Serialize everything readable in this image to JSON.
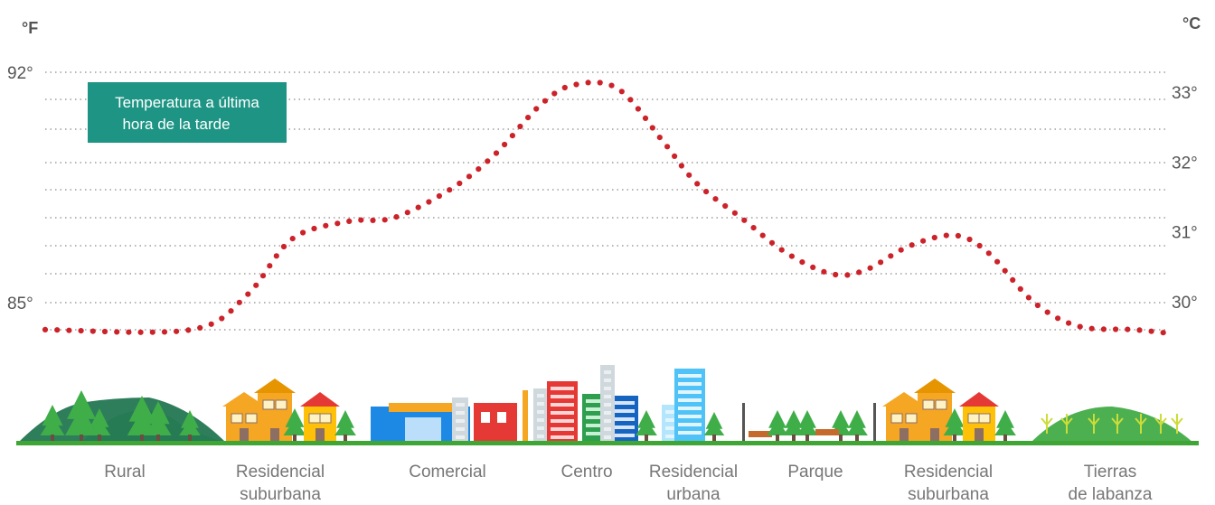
{
  "chart_data": {
    "type": "line",
    "title": "",
    "annotation": {
      "lines": [
        "Temperatura a última",
        "hora de la tarde"
      ],
      "fill": "#1e9584"
    },
    "left_axis": {
      "unit": "°F",
      "ticks": [
        {
          "value": 92,
          "label": "92°"
        },
        {
          "value": 85,
          "label": "85°"
        }
      ]
    },
    "right_axis": {
      "unit": "°C",
      "ticks": [
        {
          "value": 33,
          "label": "33°"
        },
        {
          "value": 32,
          "label": "32°"
        },
        {
          "value": 31,
          "label": "31°"
        },
        {
          "value": 30,
          "label": "30°"
        }
      ]
    },
    "grid": true,
    "regions": [
      {
        "lines": [
          "Rural"
        ]
      },
      {
        "lines": [
          "Residencial",
          "suburbana"
        ]
      },
      {
        "lines": [
          "Comercial"
        ]
      },
      {
        "lines": [
          "Centro"
        ]
      },
      {
        "lines": [
          "Residencial",
          "urbana"
        ]
      },
      {
        "lines": [
          "Parque"
        ]
      },
      {
        "lines": [
          "Residencial",
          "suburbana"
        ]
      },
      {
        "lines": [
          "Tierras",
          "de labanza"
        ]
      }
    ],
    "series": [
      {
        "color": "#cc2229",
        "style": "dotted",
        "points": [
          {
            "x": 0.0,
            "temp_c": 29.6
          },
          {
            "x": 0.13,
            "temp_c": 29.6
          },
          {
            "x": 0.18,
            "temp_c": 30.1
          },
          {
            "x": 0.22,
            "temp_c": 30.9
          },
          {
            "x": 0.27,
            "temp_c": 31.15
          },
          {
            "x": 0.31,
            "temp_c": 31.2
          },
          {
            "x": 0.36,
            "temp_c": 31.6
          },
          {
            "x": 0.4,
            "temp_c": 32.1
          },
          {
            "x": 0.44,
            "temp_c": 32.8
          },
          {
            "x": 0.47,
            "temp_c": 33.1
          },
          {
            "x": 0.51,
            "temp_c": 33.05
          },
          {
            "x": 0.55,
            "temp_c": 32.3
          },
          {
            "x": 0.58,
            "temp_c": 31.7
          },
          {
            "x": 0.62,
            "temp_c": 31.2
          },
          {
            "x": 0.66,
            "temp_c": 30.7
          },
          {
            "x": 0.7,
            "temp_c": 30.4
          },
          {
            "x": 0.73,
            "temp_c": 30.45
          },
          {
            "x": 0.77,
            "temp_c": 30.8
          },
          {
            "x": 0.81,
            "temp_c": 30.95
          },
          {
            "x": 0.84,
            "temp_c": 30.7
          },
          {
            "x": 0.88,
            "temp_c": 30.0
          },
          {
            "x": 0.92,
            "temp_c": 29.65
          },
          {
            "x": 0.97,
            "temp_c": 29.6
          },
          {
            "x": 1.0,
            "temp_c": 29.55
          }
        ]
      }
    ]
  },
  "colors": {
    "grid": "#8a8a8a",
    "ground": "#3fa535",
    "tree": "#3fae49",
    "hill_dark": "#2e7d5b",
    "hill_light": "#4caf50",
    "house_orange": "#f5a623",
    "house_yellow": "#ffc107",
    "roof_red": "#e53935",
    "shop_blue": "#1e88e5",
    "tower_red": "#e53935",
    "tower_green": "#2e9e4f",
    "tower_blue": "#1565c0",
    "tower_cyan": "#4fc3f7",
    "gray_building": "#cfd8dc"
  }
}
